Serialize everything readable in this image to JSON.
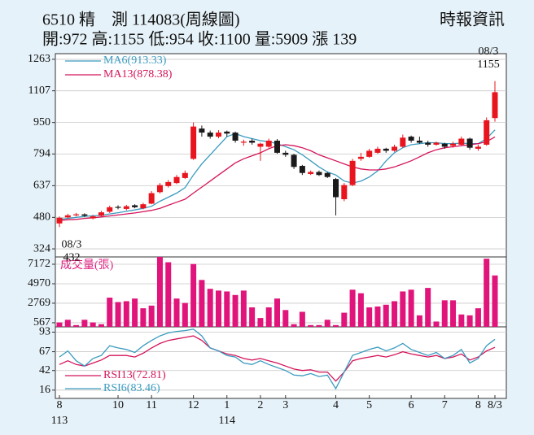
{
  "header": {
    "title": "6510 精　測 114083(周線圖)",
    "source": "時報資訊",
    "quote": "開:972 高:1155 低:954 收:1100 量:5909 漲 139"
  },
  "chart_data": {
    "type": "candlestick",
    "categories": [
      "8",
      null,
      null,
      null,
      null,
      null,
      null,
      "10",
      null,
      null,
      null,
      "11",
      null,
      null,
      null,
      null,
      "12",
      null,
      null,
      null,
      "1",
      null,
      null,
      null,
      "2",
      null,
      null,
      "3",
      null,
      null,
      null,
      null,
      null,
      "4",
      null,
      null,
      null,
      "5",
      null,
      null,
      null,
      null,
      "6",
      null,
      null,
      null,
      "7",
      null,
      null,
      null,
      "8",
      null,
      "8/3"
    ],
    "year_labels": [
      "113",
      null,
      null,
      null,
      null,
      null,
      null,
      null,
      null,
      null,
      null,
      null,
      null,
      null,
      null,
      null,
      null,
      null,
      null,
      null,
      "114",
      null,
      null,
      null,
      null,
      null,
      null,
      null,
      null,
      null,
      null,
      null,
      null,
      null,
      null,
      null,
      null,
      null,
      null,
      null,
      null,
      null,
      null,
      null,
      null,
      null,
      null,
      null,
      null,
      null,
      null,
      null,
      null
    ],
    "open": [
      450,
      480,
      490,
      495,
      475,
      488,
      508,
      532,
      522,
      540,
      525,
      548,
      605,
      635,
      650,
      675,
      770,
      920,
      900,
      880,
      905,
      900,
      850,
      860,
      830,
      830,
      860,
      800,
      790,
      735,
      695,
      705,
      700,
      670,
      570,
      640,
      770,
      780,
      800,
      820,
      810,
      830,
      880,
      860,
      850,
      840,
      845,
      835,
      840,
      870,
      820,
      840,
      972
    ],
    "high": [
      485,
      498,
      502,
      500,
      492,
      512,
      538,
      540,
      542,
      545,
      552,
      610,
      650,
      665,
      690,
      712,
      950,
      935,
      910,
      912,
      910,
      905,
      865,
      870,
      850,
      870,
      868,
      810,
      795,
      740,
      712,
      712,
      705,
      675,
      650,
      770,
      800,
      820,
      830,
      825,
      840,
      890,
      885,
      880,
      860,
      855,
      850,
      855,
      880,
      875,
      840,
      975,
      1155
    ],
    "low": [
      432,
      475,
      485,
      482,
      470,
      482,
      502,
      520,
      515,
      525,
      520,
      545,
      598,
      628,
      645,
      670,
      765,
      880,
      870,
      872,
      880,
      850,
      835,
      840,
      760,
      825,
      795,
      780,
      720,
      690,
      690,
      685,
      675,
      490,
      560,
      635,
      760,
      775,
      795,
      800,
      805,
      825,
      850,
      845,
      830,
      835,
      820,
      825,
      835,
      815,
      810,
      835,
      954
    ],
    "close": [
      478,
      490,
      495,
      488,
      485,
      505,
      530,
      528,
      535,
      530,
      545,
      600,
      640,
      655,
      680,
      700,
      930,
      900,
      880,
      900,
      895,
      860,
      855,
      850,
      845,
      860,
      800,
      790,
      730,
      700,
      705,
      690,
      680,
      580,
      640,
      760,
      780,
      810,
      820,
      810,
      830,
      875,
      860,
      850,
      840,
      850,
      830,
      845,
      870,
      825,
      830,
      961,
      1100
    ],
    "up_color": "#e8141e",
    "down_color": "#1a1a1a",
    "ylim": [
      284,
      1291
    ],
    "yticks": [
      1263,
      1107,
      950,
      794,
      637,
      480,
      324
    ],
    "series": [
      {
        "name": "MA6(913.33)",
        "color": "#3a9bc0",
        "values": [
          470,
          475,
          480,
          485,
          488,
          490,
          497,
          503,
          510,
          517,
          525,
          535,
          560,
          580,
          600,
          627,
          690,
          745,
          790,
          835,
          880,
          895,
          880,
          870,
          860,
          855,
          845,
          830,
          815,
          790,
          760,
          730,
          705,
          690,
          660,
          650,
          660,
          680,
          710,
          760,
          800,
          825,
          840,
          845,
          850,
          850,
          845,
          845,
          848,
          845,
          845,
          870,
          913.33
        ]
      },
      {
        "name": "MA13(878.38)",
        "color": "#d4145a",
        "values": [
          465,
          468,
          470,
          475,
          478,
          482,
          487,
          492,
          497,
          502,
          508,
          515,
          525,
          540,
          555,
          570,
          600,
          630,
          660,
          690,
          720,
          750,
          770,
          785,
          800,
          820,
          835,
          840,
          835,
          825,
          810,
          790,
          775,
          760,
          745,
          730,
          720,
          715,
          715,
          720,
          730,
          745,
          760,
          780,
          800,
          815,
          825,
          830,
          835,
          840,
          845,
          855,
          878.38
        ]
      }
    ],
    "high_label": {
      "date": "08/3",
      "value": 1155
    },
    "low_label": {
      "date": "08/3",
      "value": 432
    },
    "volume": {
      "title": "成交量(張)",
      "color": "#e0147a",
      "ylim": [
        100,
        8000
      ],
      "yticks": [
        7172,
        4970,
        2769,
        567
      ],
      "values": [
        600,
        900,
        300,
        900,
        600,
        400,
        3400,
        2900,
        3000,
        3300,
        2200,
        2500,
        8000,
        7400,
        3300,
        2800,
        7200,
        5400,
        4400,
        4200,
        4100,
        3700,
        4200,
        2300,
        1100,
        2300,
        3300,
        2000,
        400,
        1800,
        300,
        300,
        900,
        300,
        1700,
        4300,
        3900,
        2300,
        2400,
        2600,
        3000,
        4100,
        4300,
        1400,
        4500,
        700,
        3100,
        3100,
        1500,
        1400,
        2200,
        7800,
        5909
      ]
    },
    "rsi": {
      "ylim": [
        5,
        100
      ],
      "yticks": [
        93,
        67,
        42,
        16
      ],
      "series": [
        {
          "name": "RSI13(72.81)",
          "color": "#d4145a",
          "values": [
            50,
            55,
            50,
            48,
            52,
            56,
            62,
            62,
            62,
            60,
            65,
            72,
            78,
            82,
            84,
            86,
            88,
            82,
            72,
            68,
            64,
            62,
            58,
            56,
            58,
            55,
            52,
            48,
            44,
            42,
            43,
            40,
            40,
            28,
            40,
            55,
            58,
            60,
            62,
            60,
            63,
            67,
            64,
            62,
            60,
            62,
            58,
            60,
            64,
            56,
            60,
            68,
            72.81
          ]
        },
        {
          "name": "RSI6(83.46)",
          "color": "#3a9bc0",
          "values": [
            60,
            68,
            55,
            48,
            58,
            62,
            75,
            72,
            70,
            66,
            75,
            82,
            88,
            92,
            94,
            95,
            97,
            88,
            72,
            68,
            62,
            60,
            52,
            50,
            55,
            50,
            46,
            42,
            36,
            35,
            38,
            34,
            36,
            18,
            40,
            62,
            66,
            70,
            73,
            68,
            72,
            78,
            70,
            66,
            62,
            66,
            58,
            62,
            70,
            52,
            58,
            75,
            83.46
          ]
        }
      ]
    },
    "grid": true
  }
}
